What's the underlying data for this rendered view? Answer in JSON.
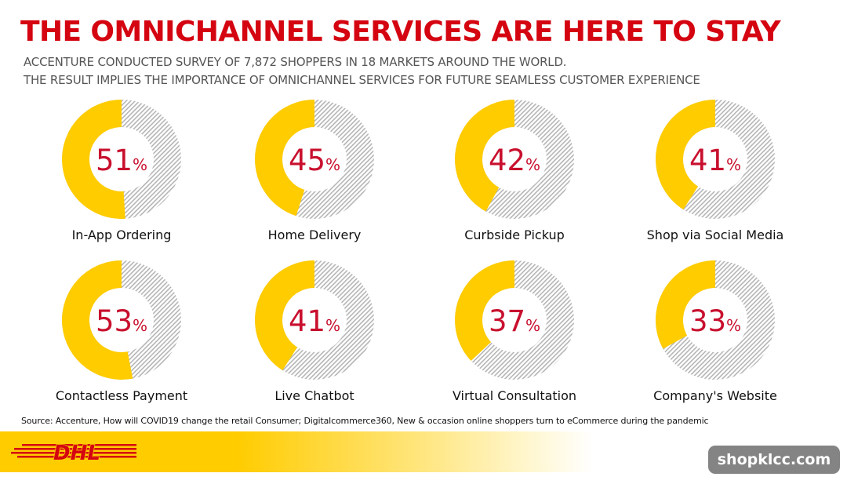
{
  "header": {
    "title": "THE OMNICHANNEL SERVICES ARE HERE TO STAY",
    "subtitle_line1": "ACCENTURE CONDUCTED SURVEY OF 7,872 SHOPPERS IN 18 MARKETS AROUND THE WORLD.",
    "subtitle_line2": "THE RESULT IMPLIES THE IMPORTANCE OF OMNICHANNEL SERVICES FOR FUTURE SEAMLESS CUSTOMER EXPERIENCE"
  },
  "chart_data": {
    "type": "donut",
    "unit": "%",
    "items": [
      {
        "label": "In-App Ordering",
        "value": 51
      },
      {
        "label": "Home Delivery",
        "value": 45
      },
      {
        "label": "Curbside Pickup",
        "value": 42
      },
      {
        "label": "Shop via Social Media",
        "value": 41
      },
      {
        "label": "Contactless Payment",
        "value": 53
      },
      {
        "label": "Live Chatbot",
        "value": 41
      },
      {
        "label": "Virtual Consultation",
        "value": 37
      },
      {
        "label": "Company's Website",
        "value": 33
      }
    ],
    "colors": {
      "filled": "#ffcc00",
      "remainder": "#bdbdbd",
      "value_text": "#c8102e",
      "label_text": "#111111"
    }
  },
  "footer": {
    "source": "Source: Accenture, How will COVID19 change the retail  Consumer; Digitalcommerce360,  New & occasion online shoppers turn to eCommerce during the pandemic",
    "logo_text": "DHL",
    "watermark": "shopklcc.com"
  },
  "colors": {
    "title": "#d40511",
    "brand_yellow": "#ffcc00",
    "brand_red": "#d40511"
  }
}
